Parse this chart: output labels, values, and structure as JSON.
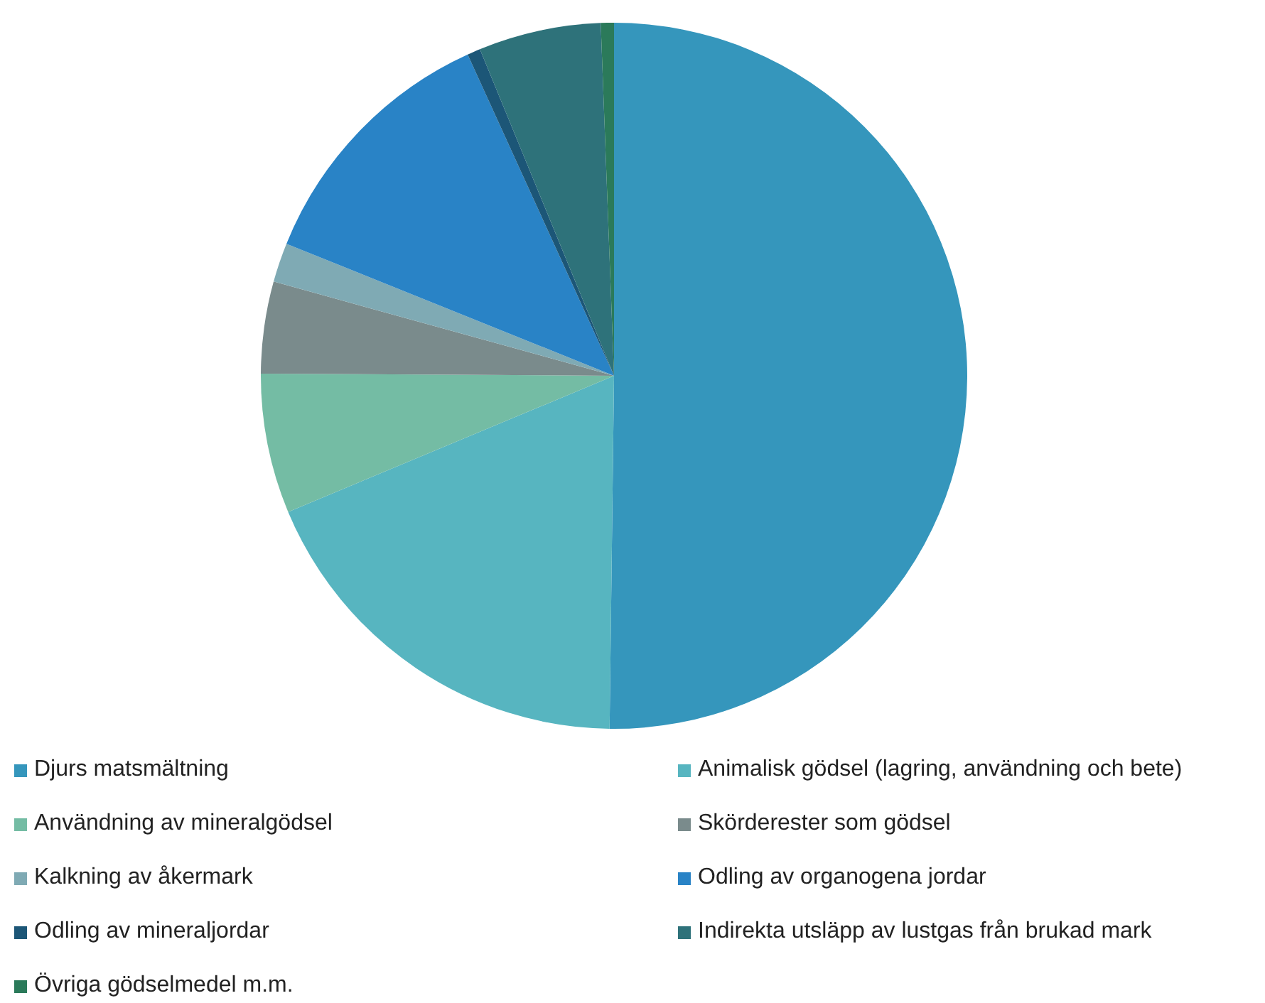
{
  "chart_data": {
    "type": "pie",
    "categories": [
      "Djurs matsmältning",
      "Animalisk gödsel (lagring, användning och bete)",
      "Användning av mineralgödsel",
      "Skörderester som gödsel",
      "Kalkning av åkermark",
      "Odling av organogena jordar",
      "Odling av mineraljordar",
      "Indirekta utsläpp av lustgas från brukad mark",
      "Övriga gödselmedel m.m."
    ],
    "values": [
      50.2,
      18.5,
      6.4,
      4.2,
      1.8,
      12.1,
      0.6,
      5.6,
      0.6
    ],
    "colors": [
      "#3596bc",
      "#57b5c0",
      "#74bca4",
      "#7a8b8c",
      "#7faab4",
      "#2983c6",
      "#1c5677",
      "#2e727a",
      "#2b7a5a"
    ],
    "legend": "bottom"
  }
}
